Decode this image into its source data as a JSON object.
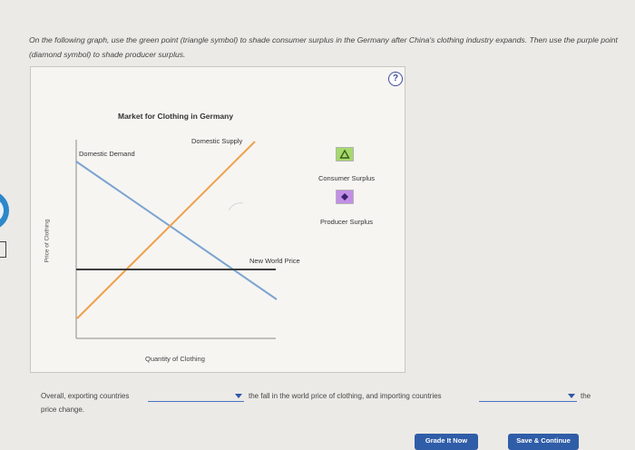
{
  "instructions": "On the following graph, use the green point (triangle symbol) to shade consumer surplus in the Germany after China's clothing industry expands. Then use the purple point (diamond symbol) to shade producer surplus.",
  "help": {
    "label": "?"
  },
  "graph": {
    "title": "Market for Clothing in Germany",
    "y_axis_label": "Price of Clothing",
    "x_axis_label": "Quantity of Clothing",
    "curves": {
      "demand_label": "Domestic Demand",
      "supply_label": "Domestic Supply",
      "world_price_label": "New World Price"
    },
    "colors": {
      "demand": "#7ba4d0",
      "supply": "#f0a04a",
      "world_price": "#3e3e3e",
      "axes": "#8a8a8a"
    }
  },
  "tools": {
    "consumer_surplus": {
      "label": "Consumer Surplus",
      "color": "#a5d96c",
      "icon": "triangle-icon"
    },
    "producer_surplus": {
      "label": "Producer Surplus",
      "color": "#c38fe6",
      "icon": "diamond-icon"
    }
  },
  "question": {
    "part1": "Overall, exporting countries",
    "part2": "the fall in the world price of clothing, and importing countries",
    "part3": "the",
    "part4": "price change.",
    "dropdown1_value": "",
    "dropdown2_value": ""
  },
  "buttons": {
    "grade": "Grade It Now",
    "save": "Save & Continue"
  }
}
